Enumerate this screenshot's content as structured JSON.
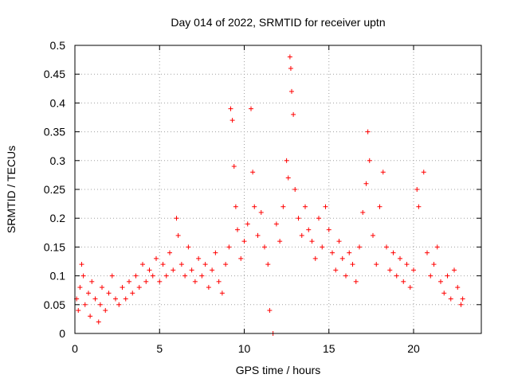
{
  "chart_data": {
    "type": "scatter",
    "title": "Day 014 of 2022, SRMTID for receiver uptn",
    "xlabel": "GPS time / hours",
    "ylabel": "SRMTID / TECUs",
    "xlim": [
      0,
      24
    ],
    "ylim": [
      0,
      0.5
    ],
    "xticks": [
      0,
      5,
      10,
      15,
      20
    ],
    "xtick_labels": [
      "0",
      "5",
      "10",
      "15",
      "20"
    ],
    "yticks": [
      0,
      0.05,
      0.1,
      0.15,
      0.2,
      0.25,
      0.3,
      0.35,
      0.4,
      0.45,
      0.5
    ],
    "ytick_labels": [
      "0",
      "0.05",
      "0.1",
      "0.15",
      "0.2",
      "0.25",
      "0.3",
      "0.35",
      "0.4",
      "0.45",
      "0.5"
    ],
    "grid": true,
    "marker": "+",
    "color": "#ff0000",
    "series": [
      {
        "name": "SRMTID",
        "points": [
          [
            0.1,
            0.06
          ],
          [
            0.2,
            0.04
          ],
          [
            0.3,
            0.08
          ],
          [
            0.4,
            0.12
          ],
          [
            0.5,
            0.1
          ],
          [
            0.6,
            0.05
          ],
          [
            0.8,
            0.07
          ],
          [
            0.9,
            0.03
          ],
          [
            1.0,
            0.09
          ],
          [
            1.2,
            0.06
          ],
          [
            1.4,
            0.02
          ],
          [
            1.5,
            0.05
          ],
          [
            1.6,
            0.08
          ],
          [
            1.8,
            0.04
          ],
          [
            2.0,
            0.07
          ],
          [
            2.2,
            0.1
          ],
          [
            2.4,
            0.06
          ],
          [
            2.6,
            0.05
          ],
          [
            2.8,
            0.08
          ],
          [
            3.0,
            0.06
          ],
          [
            3.2,
            0.09
          ],
          [
            3.4,
            0.07
          ],
          [
            3.6,
            0.1
          ],
          [
            3.8,
            0.08
          ],
          [
            4.0,
            0.12
          ],
          [
            4.2,
            0.09
          ],
          [
            4.4,
            0.11
          ],
          [
            4.6,
            0.1
          ],
          [
            4.8,
            0.13
          ],
          [
            5.0,
            0.09
          ],
          [
            5.2,
            0.12
          ],
          [
            5.4,
            0.1
          ],
          [
            5.6,
            0.14
          ],
          [
            5.8,
            0.11
          ],
          [
            6.0,
            0.2
          ],
          [
            6.1,
            0.17
          ],
          [
            6.3,
            0.12
          ],
          [
            6.5,
            0.1
          ],
          [
            6.7,
            0.15
          ],
          [
            6.9,
            0.11
          ],
          [
            7.1,
            0.09
          ],
          [
            7.3,
            0.13
          ],
          [
            7.5,
            0.1
          ],
          [
            7.7,
            0.12
          ],
          [
            7.9,
            0.08
          ],
          [
            8.1,
            0.11
          ],
          [
            8.3,
            0.14
          ],
          [
            8.5,
            0.09
          ],
          [
            8.7,
            0.07
          ],
          [
            8.9,
            0.12
          ],
          [
            9.1,
            0.15
          ],
          [
            9.2,
            0.39
          ],
          [
            9.3,
            0.37
          ],
          [
            9.4,
            0.29
          ],
          [
            9.5,
            0.22
          ],
          [
            9.6,
            0.18
          ],
          [
            9.8,
            0.13
          ],
          [
            10.0,
            0.16
          ],
          [
            10.2,
            0.19
          ],
          [
            10.4,
            0.39
          ],
          [
            10.5,
            0.28
          ],
          [
            10.6,
            0.22
          ],
          [
            10.8,
            0.17
          ],
          [
            11.0,
            0.21
          ],
          [
            11.2,
            0.15
          ],
          [
            11.4,
            0.12
          ],
          [
            11.5,
            0.04
          ],
          [
            11.7,
            0.0
          ],
          [
            11.9,
            0.19
          ],
          [
            12.1,
            0.16
          ],
          [
            12.3,
            0.22
          ],
          [
            12.5,
            0.3
          ],
          [
            12.6,
            0.27
          ],
          [
            12.7,
            0.48
          ],
          [
            12.75,
            0.46
          ],
          [
            12.8,
            0.42
          ],
          [
            12.9,
            0.38
          ],
          [
            13.0,
            0.25
          ],
          [
            13.2,
            0.2
          ],
          [
            13.4,
            0.17
          ],
          [
            13.6,
            0.22
          ],
          [
            13.8,
            0.18
          ],
          [
            14.0,
            0.16
          ],
          [
            14.2,
            0.13
          ],
          [
            14.4,
            0.2
          ],
          [
            14.6,
            0.15
          ],
          [
            14.8,
            0.22
          ],
          [
            15.0,
            0.18
          ],
          [
            15.2,
            0.14
          ],
          [
            15.4,
            0.11
          ],
          [
            15.6,
            0.16
          ],
          [
            15.8,
            0.13
          ],
          [
            16.0,
            0.1
          ],
          [
            16.2,
            0.14
          ],
          [
            16.4,
            0.12
          ],
          [
            16.6,
            0.09
          ],
          [
            16.8,
            0.15
          ],
          [
            17.0,
            0.21
          ],
          [
            17.2,
            0.26
          ],
          [
            17.3,
            0.35
          ],
          [
            17.4,
            0.3
          ],
          [
            17.6,
            0.17
          ],
          [
            17.8,
            0.12
          ],
          [
            18.0,
            0.22
          ],
          [
            18.2,
            0.28
          ],
          [
            18.4,
            0.15
          ],
          [
            18.6,
            0.11
          ],
          [
            18.8,
            0.14
          ],
          [
            19.0,
            0.1
          ],
          [
            19.2,
            0.13
          ],
          [
            19.4,
            0.09
          ],
          [
            19.6,
            0.12
          ],
          [
            19.8,
            0.08
          ],
          [
            20.0,
            0.11
          ],
          [
            20.2,
            0.25
          ],
          [
            20.3,
            0.22
          ],
          [
            20.6,
            0.28
          ],
          [
            20.8,
            0.14
          ],
          [
            21.0,
            0.1
          ],
          [
            21.2,
            0.12
          ],
          [
            21.4,
            0.15
          ],
          [
            21.6,
            0.09
          ],
          [
            21.8,
            0.07
          ],
          [
            22.0,
            0.1
          ],
          [
            22.2,
            0.06
          ],
          [
            22.4,
            0.11
          ],
          [
            22.6,
            0.08
          ],
          [
            22.8,
            0.05
          ],
          [
            22.9,
            0.06
          ]
        ]
      }
    ]
  }
}
